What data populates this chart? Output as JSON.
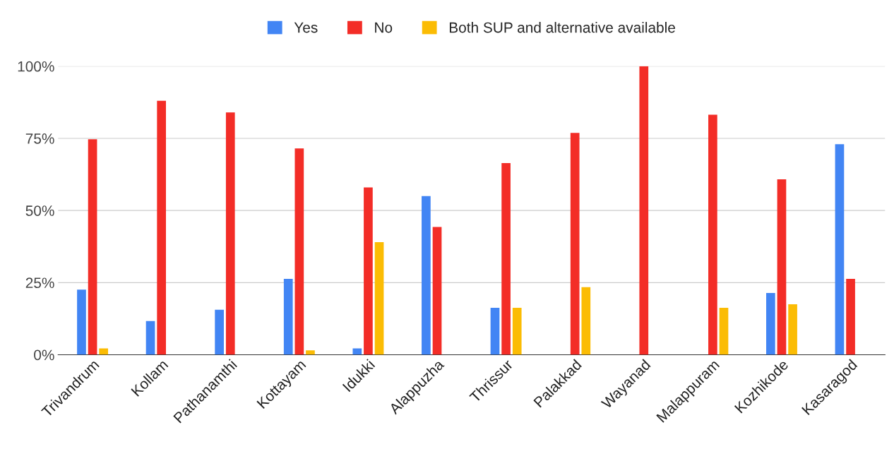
{
  "chart_data": {
    "type": "bar",
    "categories": [
      "Trivandrum",
      "Kollam",
      "Pathanamthi",
      "Kottayam",
      "Idukki",
      "Alappuzha",
      "Thrissur",
      "Palakkad",
      "Wayanad",
      "Malappuram",
      "Kozhikode",
      "Kasaragod"
    ],
    "series": [
      {
        "name": "Yes",
        "color": "#4285f4",
        "values": [
          22.6,
          11.7,
          15.6,
          26.3,
          2.2,
          55,
          16.3,
          null,
          null,
          null,
          21.4,
          73
        ]
      },
      {
        "name": "No",
        "color": "#f32d27",
        "values": [
          74.7,
          88,
          84,
          71.5,
          58,
          44.3,
          66.4,
          76.9,
          100,
          83.2,
          60.8,
          26.3
        ]
      },
      {
        "name": "Both SUP and alternative available",
        "color": "#fbbc04",
        "values": [
          2.2,
          null,
          null,
          1.5,
          39,
          null,
          16.3,
          23.4,
          null,
          16.3,
          17.5,
          null
        ]
      }
    ],
    "ylim": [
      0,
      100
    ],
    "yticks": [
      {
        "value": 0,
        "label": "0%"
      },
      {
        "value": 25,
        "label": "25%"
      },
      {
        "value": 50,
        "label": "50%"
      },
      {
        "value": 75,
        "label": "75%"
      },
      {
        "value": 100,
        "label": "100%"
      }
    ],
    "grid": "y",
    "legend": "top"
  }
}
